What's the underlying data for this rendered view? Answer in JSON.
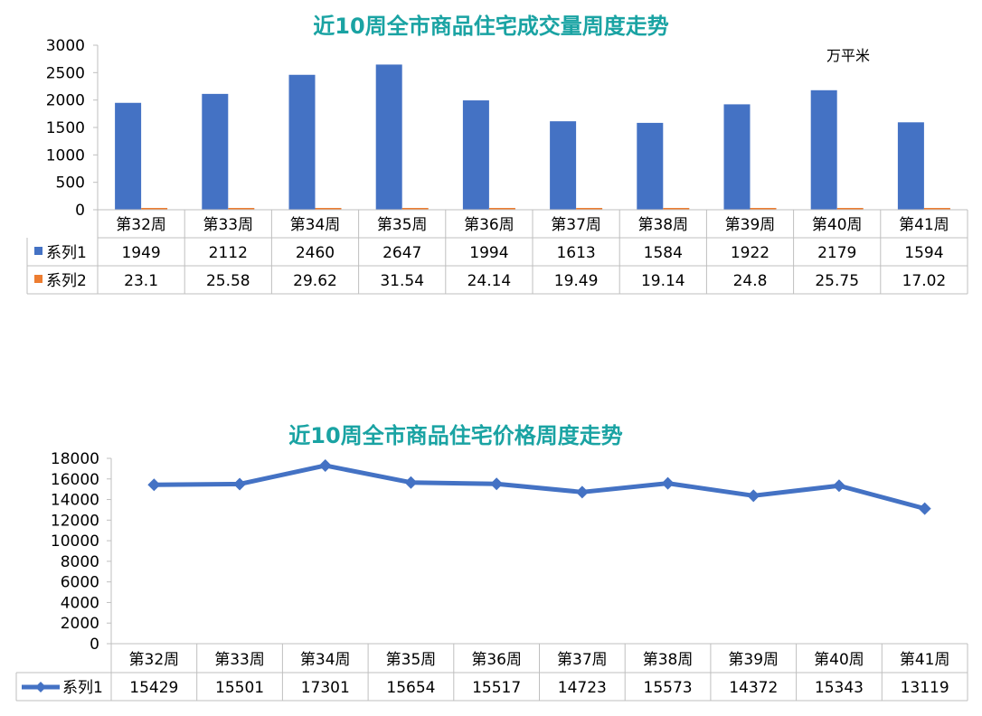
{
  "colors": {
    "title": "#1aa3a3",
    "series1": "#4472c4",
    "series2": "#ed7d31",
    "grid": "#a6a6a6"
  },
  "chart_data": [
    {
      "type": "bar",
      "title": "近10周全市商品住宅成交量周度走势",
      "unit_label": "万平米",
      "categories": [
        "第32周",
        "第33周",
        "第34周",
        "第35周",
        "第36周",
        "第37周",
        "第38周",
        "第39周",
        "第40周",
        "第41周"
      ],
      "series": [
        {
          "name": "系列1",
          "values": [
            1949,
            2112,
            2460,
            2647,
            1994,
            1613,
            1584,
            1922,
            2179,
            1594
          ]
        },
        {
          "name": "系列2",
          "values": [
            "23.1",
            "25.58",
            "29.62",
            "31.54",
            "24.14",
            "19.49",
            "19.14",
            "24.8",
            "25.75",
            "17.02"
          ]
        }
      ],
      "ylim": [
        0,
        3000
      ],
      "yticks": [
        0,
        500,
        1000,
        1500,
        2000,
        2500,
        3000
      ],
      "grid": false,
      "legend": "data table"
    },
    {
      "type": "line",
      "title": "近10周全市商品住宅价格周度走势",
      "categories": [
        "第32周",
        "第33周",
        "第34周",
        "第35周",
        "第36周",
        "第37周",
        "第38周",
        "第39周",
        "第40周",
        "第41周"
      ],
      "series": [
        {
          "name": "系列1",
          "values": [
            15429,
            15501,
            17301,
            15654,
            15517,
            14723,
            15573,
            14372,
            15343,
            13119
          ]
        }
      ],
      "ylim": [
        0,
        18000
      ],
      "yticks": [
        0,
        2000,
        4000,
        6000,
        8000,
        10000,
        12000,
        14000,
        16000,
        18000
      ],
      "grid": false,
      "legend": "data table"
    }
  ]
}
